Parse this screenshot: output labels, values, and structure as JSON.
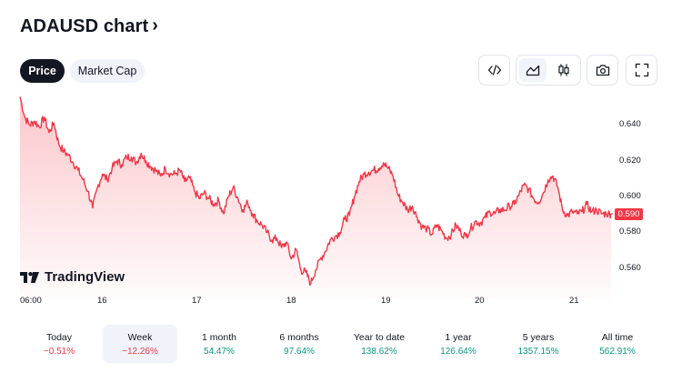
{
  "header": {
    "title": "ADAUSD chart",
    "chevron": "›"
  },
  "tabs": [
    {
      "label": "Price",
      "active": true
    },
    {
      "label": "Market Cap",
      "active": false
    }
  ],
  "toolbar": {
    "icons": [
      "embed-code-icon",
      "area-chart-icon",
      "candlestick-icon",
      "camera-icon",
      "fullscreen-icon"
    ],
    "selected": "area-chart-icon"
  },
  "chart_data": {
    "type": "area",
    "title": "",
    "x_labels": [
      "06:00",
      "16",
      "17",
      "18",
      "19",
      "20",
      "21"
    ],
    "y_ticks": [
      "0.640",
      "0.620",
      "0.600",
      "0.580",
      "0.560"
    ],
    "ylim": [
      0.548,
      0.655
    ],
    "x_day_positions": [
      0,
      0.75,
      1.75,
      2.75,
      3.75,
      4.75,
      5.75
    ],
    "series": [
      {
        "x": [
          0.0,
          0.05,
          0.1,
          0.15,
          0.2,
          0.25,
          0.3,
          0.35,
          0.4,
          0.45,
          0.5,
          0.55,
          0.6,
          0.65,
          0.7,
          0.75,
          0.8,
          0.85,
          0.9,
          0.95,
          1.0,
          1.05,
          1.1,
          1.15,
          1.2,
          1.25,
          1.3,
          1.35,
          1.4,
          1.45,
          1.5,
          1.55,
          1.6,
          1.65,
          1.7,
          1.75,
          1.8,
          1.85,
          1.9,
          1.95,
          2.0,
          2.05,
          2.1,
          2.15,
          2.2,
          2.25,
          2.3,
          2.35,
          2.4,
          2.45,
          2.5,
          2.55,
          2.6,
          2.65,
          2.7,
          2.75,
          2.8,
          2.85,
          2.9,
          2.95,
          3.0,
          3.05,
          3.1,
          3.15,
          3.2,
          3.25,
          3.3,
          3.35,
          3.4,
          3.45,
          3.5,
          3.55,
          3.6,
          3.65,
          3.7,
          3.75,
          3.8,
          3.85,
          3.9,
          3.95,
          4.0,
          4.05,
          4.1,
          4.15,
          4.2,
          4.25,
          4.3,
          4.35,
          4.4,
          4.45,
          4.5,
          4.55,
          4.6,
          4.65,
          4.7,
          4.75,
          4.8,
          4.85,
          4.9,
          4.95,
          5.0,
          5.05,
          5.1,
          5.15,
          5.2,
          5.25,
          5.3,
          5.35,
          5.4,
          5.45,
          5.5,
          5.55,
          5.6,
          5.65,
          5.7,
          5.75,
          5.8,
          5.85,
          5.9,
          5.95,
          6.0,
          6.05,
          6.1
        ],
        "y": [
          0.652,
          0.641,
          0.637,
          0.639,
          0.636,
          0.641,
          0.633,
          0.638,
          0.627,
          0.623,
          0.621,
          0.617,
          0.613,
          0.608,
          0.602,
          0.593,
          0.604,
          0.611,
          0.608,
          0.614,
          0.618,
          0.616,
          0.62,
          0.62,
          0.617,
          0.622,
          0.618,
          0.615,
          0.613,
          0.61,
          0.614,
          0.611,
          0.611,
          0.613,
          0.607,
          0.609,
          0.602,
          0.598,
          0.601,
          0.598,
          0.595,
          0.597,
          0.59,
          0.599,
          0.604,
          0.598,
          0.592,
          0.596,
          0.59,
          0.586,
          0.584,
          0.58,
          0.576,
          0.577,
          0.572,
          0.575,
          0.566,
          0.571,
          0.56,
          0.559,
          0.553,
          0.56,
          0.566,
          0.57,
          0.576,
          0.578,
          0.58,
          0.587,
          0.589,
          0.599,
          0.607,
          0.611,
          0.612,
          0.613,
          0.614,
          0.617,
          0.614,
          0.61,
          0.6,
          0.596,
          0.592,
          0.594,
          0.588,
          0.583,
          0.582,
          0.579,
          0.584,
          0.581,
          0.577,
          0.579,
          0.584,
          0.58,
          0.578,
          0.582,
          0.586,
          0.585,
          0.588,
          0.591,
          0.59,
          0.592,
          0.592,
          0.594,
          0.595,
          0.6,
          0.605,
          0.603,
          0.598,
          0.596,
          0.601,
          0.608,
          0.61,
          0.604,
          0.592,
          0.589,
          0.591,
          0.59,
          0.591,
          0.595,
          0.591,
          0.592,
          0.59,
          0.59,
          0.59
        ]
      }
    ],
    "last_price": "0.590",
    "line_color": "#f23645",
    "fill_color": "#f23645",
    "grid": false,
    "watermark": "TradingView"
  },
  "periods": [
    {
      "label": "Today",
      "change": "−0.51%",
      "dir": "neg",
      "selected": false
    },
    {
      "label": "Week",
      "change": "−12.26%",
      "dir": "neg",
      "selected": true
    },
    {
      "label": "1 month",
      "change": "54.47%",
      "dir": "pos",
      "selected": false
    },
    {
      "label": "6 months",
      "change": "97.64%",
      "dir": "pos",
      "selected": false
    },
    {
      "label": "Year to date",
      "change": "138.62%",
      "dir": "pos",
      "selected": false
    },
    {
      "label": "1 year",
      "change": "126.64%",
      "dir": "pos",
      "selected": false
    },
    {
      "label": "5 years",
      "change": "1357.15%",
      "dir": "pos",
      "selected": false
    },
    {
      "label": "All time",
      "change": "562.91%",
      "dir": "pos",
      "selected": false
    }
  ]
}
